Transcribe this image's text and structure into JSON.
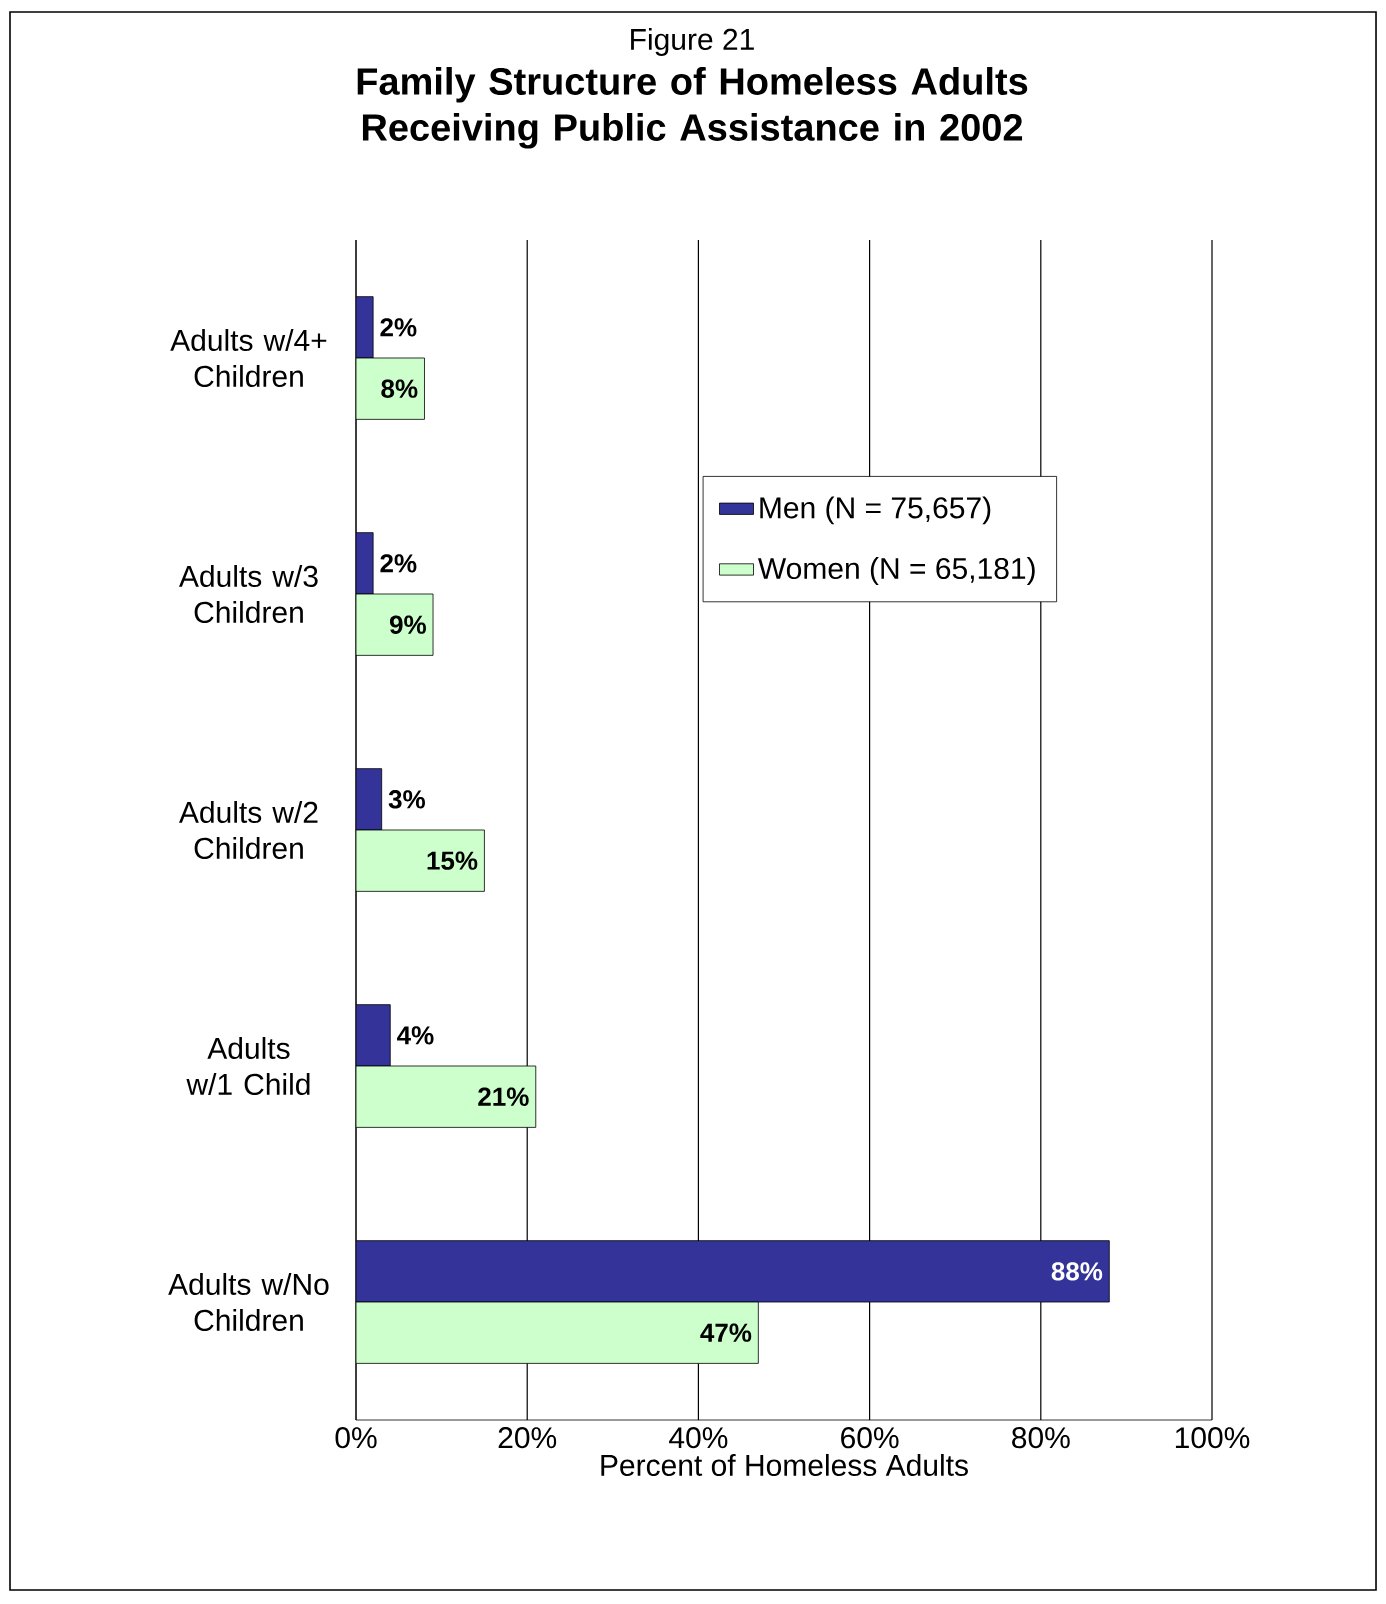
{
  "chart_data": {
    "type": "bar",
    "orientation": "horizontal",
    "subtitle": "Figure 21",
    "title": "Family Structure of Homeless Adults Receiving Public Assistance in 2002",
    "xlabel": "Percent of Homeless Adults",
    "categories": [
      "Adults w/4+ Children",
      "Adults w/3 Children",
      "Adults w/2 Children",
      "Adults w/1 Child",
      "Adults w/No Children"
    ],
    "series": [
      {
        "name": "Men (N = 75,657)",
        "color": "#333399",
        "values": [
          2,
          2,
          3,
          4,
          88
        ],
        "value_labels": [
          "2%",
          "2%",
          "3%",
          "4%",
          "88%"
        ]
      },
      {
        "name": "Women (N = 65,181)",
        "color": "#ccffcc",
        "values": [
          8,
          9,
          15,
          21,
          47
        ],
        "value_labels": [
          "8%",
          "9%",
          "15%",
          "21%",
          "47%"
        ]
      }
    ],
    "xlim": [
      0,
      100
    ],
    "xticks": [
      {
        "value": 0,
        "label": "0%"
      },
      {
        "value": 20,
        "label": "20%"
      },
      {
        "value": 40,
        "label": "40%"
      },
      {
        "value": 60,
        "label": "60%"
      },
      {
        "value": 80,
        "label": "80%"
      },
      {
        "value": 100,
        "label": "100%"
      }
    ],
    "grid": "x",
    "legend": "top right"
  }
}
